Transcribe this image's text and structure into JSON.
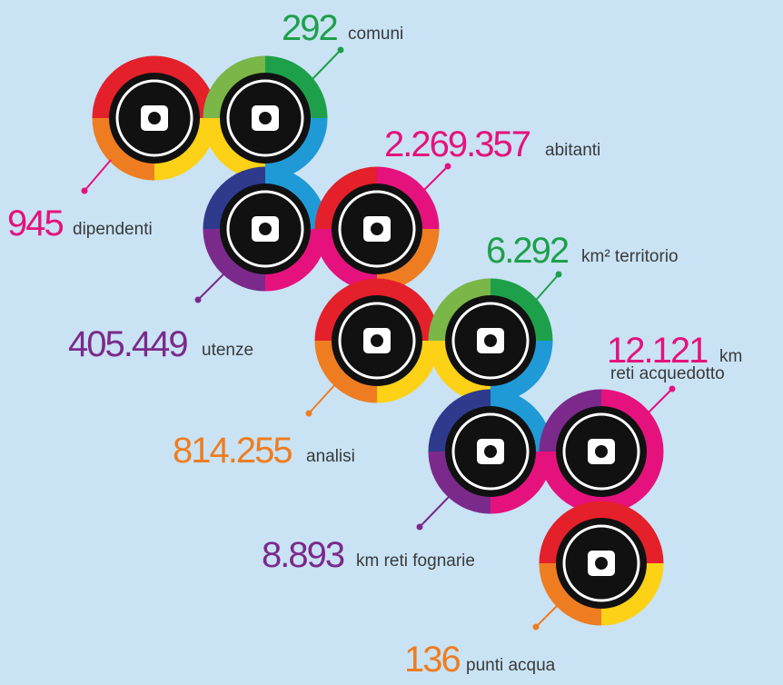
{
  "items": [
    {
      "value": "292",
      "label": "comuni",
      "color": "#1ea04b"
    },
    {
      "value": "945",
      "label": "dipendenti",
      "color": "#e5127d"
    },
    {
      "value": "2.269.357",
      "label": "abitanti",
      "color": "#e5127d"
    },
    {
      "value": "6.292",
      "label": "km² territorio",
      "color": "#1ea04b"
    },
    {
      "value": "405.449",
      "label": "utenze",
      "color": "#7b2a8b"
    },
    {
      "value": "12.121",
      "label": "km",
      "label2": "reti acquedotto",
      "color": "#e5127d"
    },
    {
      "value": "814.255",
      "label": "analisi",
      "color": "#ee7d22"
    },
    {
      "value": "8.893",
      "label": "km reti fognarie",
      "color": "#7b2a8b"
    },
    {
      "value": "136",
      "label": "punti acqua",
      "color": "#ee7d22"
    }
  ]
}
